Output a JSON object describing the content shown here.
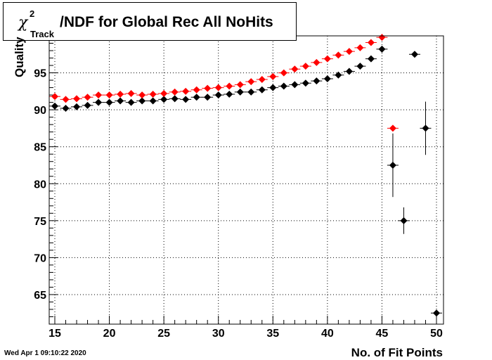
{
  "chart_data": {
    "type": "scatter",
    "title_symbol": "χ",
    "title_superscript": "2",
    "title_subscript": "Track",
    "title_text": "/NDF for Global Rec All NoHits",
    "xlabel": "No. of Fit Points",
    "ylabel": "Quality",
    "xlim": [
      15,
      50
    ],
    "ylim": [
      61,
      100
    ],
    "x_ticks": [
      15,
      20,
      25,
      30,
      35,
      40,
      45,
      50
    ],
    "y_ticks": [
      65,
      70,
      75,
      80,
      85,
      90,
      95
    ],
    "grid": true,
    "series": [
      {
        "color": "#000000",
        "points": [
          {
            "x": 15,
            "y": 90.5
          },
          {
            "x": 16,
            "y": 90.2
          },
          {
            "x": 17,
            "y": 90.4
          },
          {
            "x": 18,
            "y": 90.6
          },
          {
            "x": 19,
            "y": 91.0
          },
          {
            "x": 20,
            "y": 91.0
          },
          {
            "x": 21,
            "y": 91.2
          },
          {
            "x": 22,
            "y": 91.0
          },
          {
            "x": 23,
            "y": 91.2
          },
          {
            "x": 24,
            "y": 91.2
          },
          {
            "x": 25,
            "y": 91.4
          },
          {
            "x": 26,
            "y": 91.5
          },
          {
            "x": 27,
            "y": 91.4
          },
          {
            "x": 28,
            "y": 91.7
          },
          {
            "x": 29,
            "y": 91.7
          },
          {
            "x": 30,
            "y": 92.0
          },
          {
            "x": 31,
            "y": 92.1
          },
          {
            "x": 32,
            "y": 92.4
          },
          {
            "x": 33,
            "y": 92.4
          },
          {
            "x": 34,
            "y": 92.7
          },
          {
            "x": 35,
            "y": 93.0
          },
          {
            "x": 36,
            "y": 93.2
          },
          {
            "x": 37,
            "y": 93.4
          },
          {
            "x": 38,
            "y": 93.6
          },
          {
            "x": 39,
            "y": 93.9
          },
          {
            "x": 40,
            "y": 94.2
          },
          {
            "x": 41,
            "y": 94.7
          },
          {
            "x": 42,
            "y": 95.2
          },
          {
            "x": 43,
            "y": 95.9
          },
          {
            "x": 44,
            "y": 96.9
          },
          {
            "x": 45,
            "y": 98.2
          },
          {
            "x": 46,
            "y": 82.5,
            "err": 4.3
          },
          {
            "x": 47,
            "y": 75.0,
            "err": 1.8
          },
          {
            "x": 48,
            "y": 97.5
          },
          {
            "x": 49,
            "y": 87.5,
            "err": 3.6
          },
          {
            "x": 50,
            "y": 62.5
          }
        ]
      },
      {
        "color": "#ff0000",
        "points": [
          {
            "x": 15,
            "y": 91.8
          },
          {
            "x": 16,
            "y": 91.4
          },
          {
            "x": 17,
            "y": 91.5
          },
          {
            "x": 18,
            "y": 91.7
          },
          {
            "x": 19,
            "y": 92.0
          },
          {
            "x": 20,
            "y": 92.0
          },
          {
            "x": 21,
            "y": 92.1
          },
          {
            "x": 22,
            "y": 92.2
          },
          {
            "x": 23,
            "y": 92.0
          },
          {
            "x": 24,
            "y": 92.1
          },
          {
            "x": 25,
            "y": 92.2
          },
          {
            "x": 26,
            "y": 92.4
          },
          {
            "x": 27,
            "y": 92.5
          },
          {
            "x": 28,
            "y": 92.7
          },
          {
            "x": 29,
            "y": 92.9
          },
          {
            "x": 30,
            "y": 93.0
          },
          {
            "x": 31,
            "y": 93.2
          },
          {
            "x": 32,
            "y": 93.4
          },
          {
            "x": 33,
            "y": 93.8
          },
          {
            "x": 34,
            "y": 94.1
          },
          {
            "x": 35,
            "y": 94.5
          },
          {
            "x": 36,
            "y": 95.0
          },
          {
            "x": 37,
            "y": 95.5
          },
          {
            "x": 38,
            "y": 95.9
          },
          {
            "x": 39,
            "y": 96.4
          },
          {
            "x": 40,
            "y": 96.9
          },
          {
            "x": 41,
            "y": 97.4
          },
          {
            "x": 42,
            "y": 97.9
          },
          {
            "x": 43,
            "y": 98.4
          },
          {
            "x": 44,
            "y": 99.1
          },
          {
            "x": 45,
            "y": 99.8
          },
          {
            "x": 46,
            "y": 87.5
          }
        ]
      }
    ]
  },
  "footer": {
    "timestamp": "Wed Apr  1 09:10:22 2020"
  }
}
